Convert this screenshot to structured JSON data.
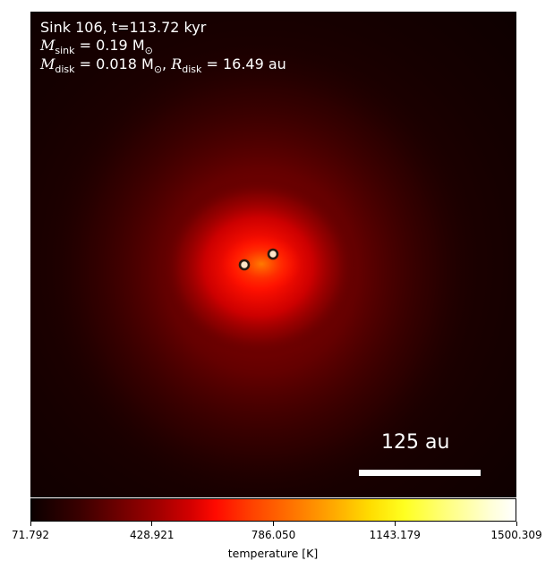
{
  "info": {
    "line1": "Sink 106, t=113.72 kyr",
    "line2_sym": "M",
    "line2_sub": "sink",
    "line2_rest": " = 0.19 M",
    "line2_sun": "⊙",
    "line3_sym": "M",
    "line3_sub": "disk",
    "line3_rest": " = 0.018 M",
    "line3_sun": "⊙",
    "line3_sep": ", ",
    "line3_sym2": "R",
    "line3_sub2": "disk",
    "line3_rest2": " = 16.49 au"
  },
  "scale_bar": {
    "label": "125 au"
  },
  "colorbar": {
    "label": "temperature [K]",
    "ticks": [
      "71.792",
      "428.921",
      "786.050",
      "1143.179",
      "1500.309"
    ],
    "min": 71.792,
    "max": 1500.309,
    "colormap": "hot"
  },
  "sinks": [
    {
      "name": "sink-a"
    },
    {
      "name": "sink-b"
    }
  ],
  "colors": {
    "background_outer": "#0f0000",
    "glow_core": "#ff2000",
    "sink_marker_edge": "#2a1a10",
    "sink_marker_fill": "#ffe6c8"
  }
}
